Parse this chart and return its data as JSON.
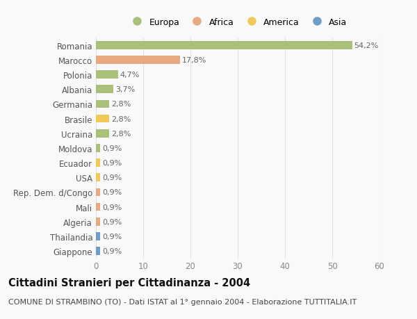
{
  "countries": [
    "Romania",
    "Marocco",
    "Polonia",
    "Albania",
    "Germania",
    "Brasile",
    "Ucraina",
    "Moldova",
    "Ecuador",
    "USA",
    "Rep. Dem. d/Congo",
    "Mali",
    "Algeria",
    "Thailandia",
    "Giappone"
  ],
  "values": [
    54.2,
    17.8,
    4.7,
    3.7,
    2.8,
    2.8,
    2.8,
    0.9,
    0.9,
    0.9,
    0.9,
    0.9,
    0.9,
    0.9,
    0.9
  ],
  "labels": [
    "54,2%",
    "17,8%",
    "4,7%",
    "3,7%",
    "2,8%",
    "2,8%",
    "2,8%",
    "0,9%",
    "0,9%",
    "0,9%",
    "0,9%",
    "0,9%",
    "0,9%",
    "0,9%",
    "0,9%"
  ],
  "continents": [
    "Europa",
    "Africa",
    "Europa",
    "Europa",
    "Europa",
    "America",
    "Europa",
    "Europa",
    "America",
    "America",
    "Africa",
    "Africa",
    "Africa",
    "Asia",
    "Asia"
  ],
  "continent_colors": {
    "Europa": "#a8c07a",
    "Africa": "#e8a882",
    "America": "#f0c95a",
    "Asia": "#6b9ec8"
  },
  "legend_order": [
    "Europa",
    "Africa",
    "America",
    "Asia"
  ],
  "title": "Cittadini Stranieri per Cittadinanza - 2004",
  "subtitle": "COMUNE DI STRAMBINO (TO) - Dati ISTAT al 1° gennaio 2004 - Elaborazione TUTTITALIA.IT",
  "xlim": [
    0,
    60
  ],
  "xticks": [
    0,
    10,
    20,
    30,
    40,
    50,
    60
  ],
  "background_color": "#f9f9f9",
  "grid_color": "#e0e0e0",
  "bar_height": 0.55,
  "label_fontsize": 8,
  "tick_fontsize": 8.5,
  "ytick_fontsize": 8.5,
  "title_fontsize": 10.5,
  "subtitle_fontsize": 8
}
